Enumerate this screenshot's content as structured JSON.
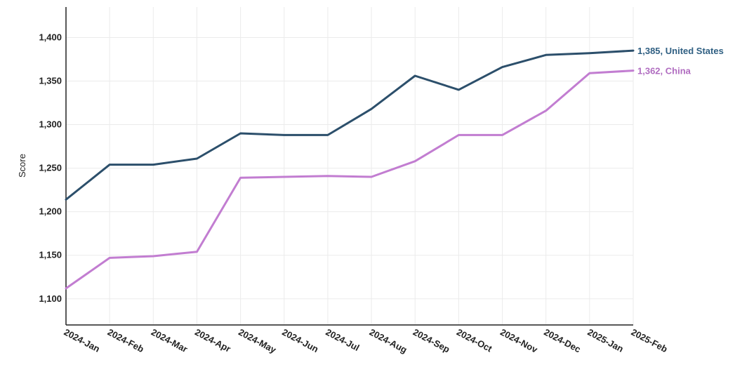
{
  "chart_data": {
    "type": "line",
    "ylabel": "Score",
    "xlabel": "",
    "ylim": [
      1070,
      1435
    ],
    "yticks": [
      1100,
      1150,
      1200,
      1250,
      1300,
      1350,
      1400
    ],
    "ytick_labels": [
      "1,100",
      "1,150",
      "1,200",
      "1,250",
      "1,300",
      "1,350",
      "1,400"
    ],
    "grid": true,
    "categories": [
      "2024-Jan",
      "2024-Feb",
      "2024-Mar",
      "2024-Apr",
      "2024-May",
      "2024-Jun",
      "2024-Jul",
      "2024-Aug",
      "2024-Sep",
      "2024-Oct",
      "2024-Nov",
      "2024-Dec",
      "2025-Jan",
      "2025-Feb"
    ],
    "series": [
      {
        "name": "United States",
        "color": "#2c4f6b",
        "label_color": "#2f5f82",
        "end_label": "1,385, United States",
        "values": [
          1214,
          1254,
          1254,
          1261,
          1290,
          1288,
          1288,
          1318,
          1356,
          1340,
          1366,
          1380,
          1382,
          1385
        ]
      },
      {
        "name": "China",
        "color": "#c27dd1",
        "label_color": "#b06cc0",
        "end_label": "1,362, China",
        "values": [
          1112,
          1147,
          1149,
          1154,
          1239,
          1240,
          1241,
          1240,
          1258,
          1288,
          1288,
          1316,
          1359,
          1362
        ]
      }
    ]
  }
}
